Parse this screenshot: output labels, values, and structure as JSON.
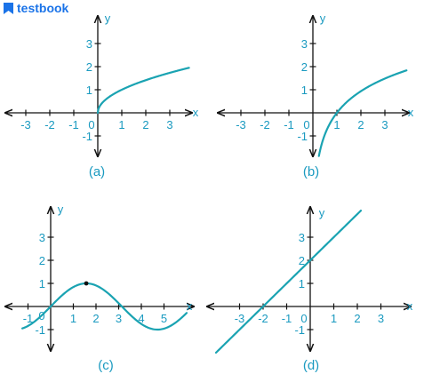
{
  "brand": {
    "name": "testbook",
    "color": "#1a73e8"
  },
  "colors": {
    "axis": "#111111",
    "curve": "#1aa3b2",
    "label": "#1a9ac0",
    "point": "#111111"
  },
  "panels": [
    {
      "id": "a",
      "caption": "(a)",
      "x_axis_label": "x",
      "y_axis_label": "y",
      "x_ticks": [
        "-3",
        "-2",
        "-1",
        "0",
        "1",
        "2",
        "3"
      ],
      "y_ticks": [
        "3",
        "2",
        "1",
        "-1"
      ],
      "curve": "square root: y = sqrt(x), x from 0 to 3.8"
    },
    {
      "id": "b",
      "caption": "(b)",
      "x_axis_label": "x",
      "y_axis_label": "y",
      "x_ticks": [
        "-3",
        "-2",
        "-1",
        "0",
        "1",
        "2",
        "3"
      ],
      "y_ticks": [
        "3",
        "2",
        "1",
        "-1"
      ],
      "curve": "logarithmic through (1, 0)"
    },
    {
      "id": "c",
      "caption": "(c)",
      "x_axis_label": "x",
      "y_axis_label": "y",
      "x_ticks": [
        "-1",
        "0",
        "1",
        "2",
        "3",
        "4",
        "5"
      ],
      "y_ticks": [
        "3",
        "2",
        "1",
        "-1"
      ],
      "curve": "sine: y = sin(x)",
      "marked_point": {
        "x": 1.5708,
        "y": 1
      }
    },
    {
      "id": "d",
      "caption": "(d)",
      "x_axis_label": "x",
      "y_axis_label": "y",
      "x_ticks": [
        "-3",
        "-2",
        "-1",
        "0",
        "1",
        "2",
        "3"
      ],
      "y_ticks": [
        "3",
        "2",
        "1",
        "-1"
      ],
      "curve": "line: y = x + 2"
    }
  ]
}
